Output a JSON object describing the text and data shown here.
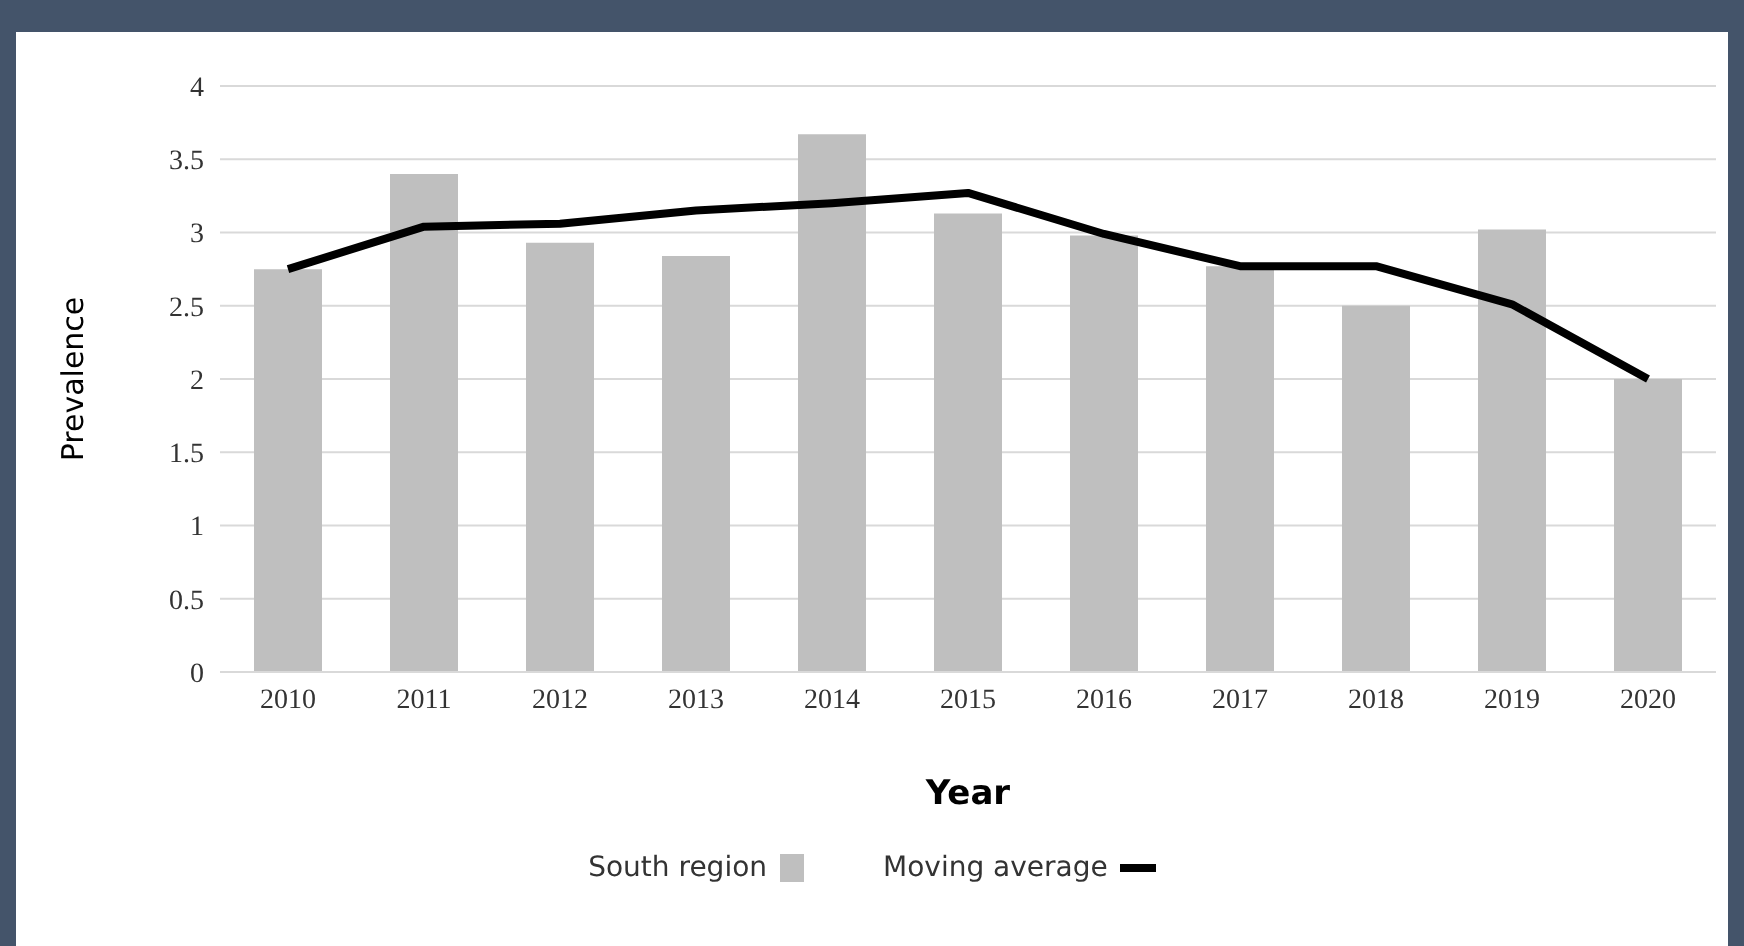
{
  "chart_data": {
    "type": "bar",
    "xlabel": "Year",
    "ylabel": "Prevalence",
    "categories": [
      "2010",
      "2011",
      "2012",
      "2013",
      "2014",
      "2015",
      "2016",
      "2017",
      "2018",
      "2019",
      "2020"
    ],
    "series": [
      {
        "name": "South region",
        "color": "#bfbfbf",
        "values": [
          2.75,
          3.4,
          2.93,
          2.84,
          3.67,
          3.13,
          2.98,
          2.77,
          2.5,
          3.02,
          2.0
        ]
      },
      {
        "name": "Moving average",
        "type": "line",
        "color": "#000000",
        "values": [
          2.75,
          3.04,
          3.06,
          3.15,
          3.2,
          3.27,
          2.99,
          2.77,
          2.77,
          2.51,
          2.0
        ]
      }
    ],
    "ylim": [
      0,
      4
    ],
    "yticks": [
      0,
      0.5,
      1,
      1.5,
      2,
      2.5,
      3,
      3.5,
      4
    ],
    "grid": "y",
    "legend": "bottom",
    "marker": "none",
    "line_style": "solid"
  }
}
